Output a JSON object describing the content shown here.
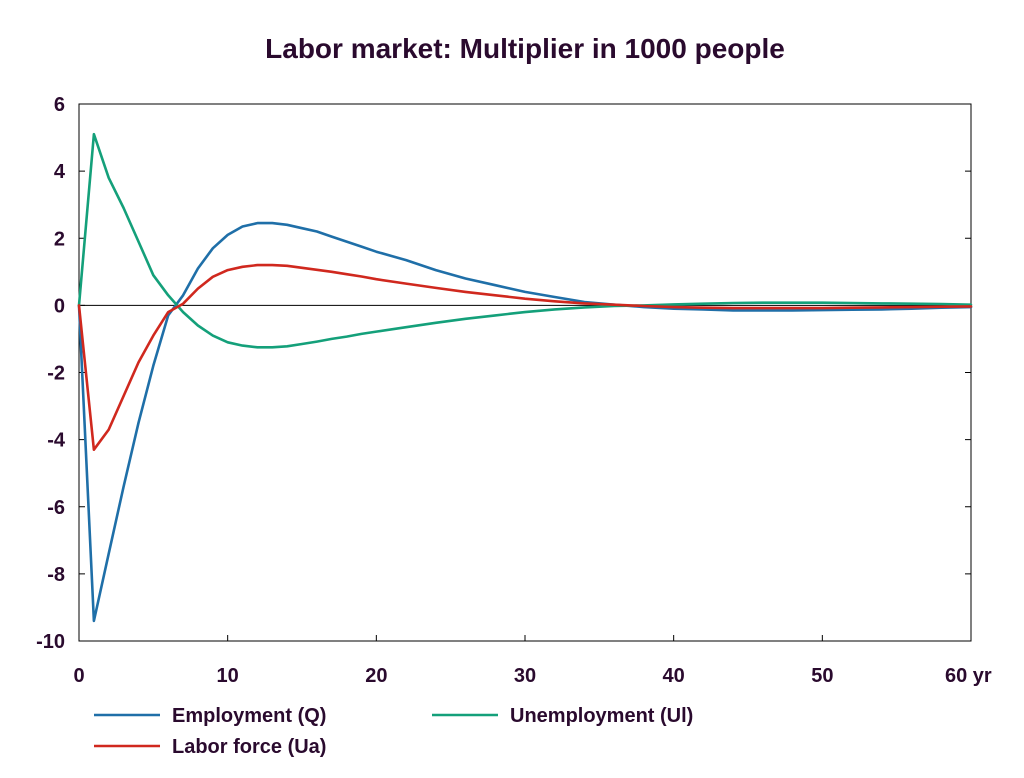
{
  "chart_data": {
    "type": "line",
    "title": "Labor market: Multiplier in 1000 people",
    "xlabel": "",
    "ylabel": "",
    "xlim": [
      0,
      60
    ],
    "ylim": [
      -10,
      6
    ],
    "x_ticks": [
      0,
      10,
      20,
      30,
      40,
      50,
      60
    ],
    "x_tick_labels": [
      "0",
      "10",
      "20",
      "30",
      "40",
      "50",
      "60 yr"
    ],
    "y_ticks": [
      6,
      4,
      2,
      0,
      -2,
      -4,
      -6,
      -8,
      -10
    ],
    "y_tick_labels": [
      "6",
      "4",
      "2",
      "0",
      "-2",
      "-4",
      "-6",
      "-8",
      "-10"
    ],
    "grid": false,
    "zero_line": true,
    "legend_position": "bottom",
    "x": [
      0,
      1,
      2,
      3,
      4,
      5,
      6,
      7,
      8,
      9,
      10,
      11,
      12,
      13,
      14,
      15,
      16,
      17,
      18,
      19,
      20,
      22,
      24,
      26,
      28,
      30,
      32,
      34,
      36,
      38,
      40,
      42,
      44,
      46,
      48,
      50,
      52,
      54,
      56,
      58,
      60
    ],
    "series": [
      {
        "name": "Employment (Q)",
        "color": "#1f6fa8",
        "values": [
          0,
          -9.4,
          -7.4,
          -5.4,
          -3.5,
          -1.8,
          -0.3,
          0.3,
          1.1,
          1.7,
          2.1,
          2.35,
          2.45,
          2.45,
          2.4,
          2.3,
          2.2,
          2.05,
          1.9,
          1.75,
          1.6,
          1.35,
          1.05,
          0.8,
          0.6,
          0.4,
          0.25,
          0.1,
          0.02,
          -0.05,
          -0.1,
          -0.12,
          -0.15,
          -0.15,
          -0.15,
          -0.14,
          -0.13,
          -0.12,
          -0.1,
          -0.07,
          -0.05
        ]
      },
      {
        "name": "Unemployment (Ul)",
        "color": "#14a07a",
        "values": [
          0,
          5.1,
          3.8,
          2.9,
          1.9,
          0.9,
          0.3,
          -0.2,
          -0.6,
          -0.9,
          -1.1,
          -1.2,
          -1.25,
          -1.25,
          -1.22,
          -1.15,
          -1.08,
          -1.0,
          -0.93,
          -0.85,
          -0.78,
          -0.65,
          -0.52,
          -0.4,
          -0.3,
          -0.2,
          -0.12,
          -0.06,
          -0.02,
          0.0,
          0.03,
          0.05,
          0.07,
          0.08,
          0.08,
          0.08,
          0.07,
          0.06,
          0.05,
          0.04,
          0.02
        ]
      },
      {
        "name": "Labor force (Ua)",
        "color": "#d0281e",
        "values": [
          0,
          -4.3,
          -3.7,
          -2.7,
          -1.7,
          -0.9,
          -0.2,
          0.05,
          0.5,
          0.85,
          1.05,
          1.15,
          1.2,
          1.2,
          1.18,
          1.12,
          1.06,
          1.0,
          0.93,
          0.86,
          0.78,
          0.65,
          0.52,
          0.4,
          0.3,
          0.2,
          0.12,
          0.06,
          0.02,
          -0.02,
          -0.05,
          -0.07,
          -0.08,
          -0.08,
          -0.08,
          -0.08,
          -0.07,
          -0.06,
          -0.05,
          -0.04,
          -0.03
        ]
      }
    ]
  }
}
